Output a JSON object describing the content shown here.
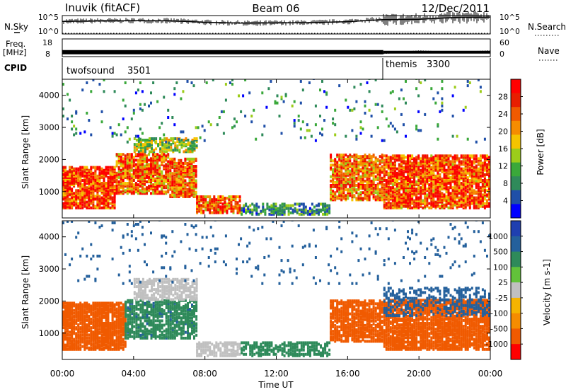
{
  "header": {
    "station": "Inuvik (fitACF)",
    "beam": "Beam 06",
    "date": "12/Dec/2011"
  },
  "noise_panel": {
    "left_label": "N.Sky",
    "right_label": "N.Search",
    "y_ticks": [
      "10^5",
      "10^0"
    ]
  },
  "freq_panel": {
    "left_label_1": "Freq.",
    "left_label_2": "[MHz]",
    "right_label": "Nave",
    "left_ticks": [
      "18",
      "8"
    ],
    "right_ticks": [
      "60",
      "0"
    ]
  },
  "cpid_panel": {
    "label": "CPID",
    "segments": [
      {
        "name": "twofsound",
        "id": "3501",
        "start_hour": 0
      },
      {
        "name": "themis",
        "id": "3300",
        "start_hour": 18
      }
    ]
  },
  "time_axis": {
    "title": "Time UT",
    "ticks": [
      "00:00",
      "04:00",
      "08:00",
      "12:00",
      "16:00",
      "20:00",
      "00:00"
    ]
  },
  "colors": {
    "power": [
      "#0000ff",
      "#1f4fa8",
      "#2f8a5a",
      "#3aa83a",
      "#9ccc1a",
      "#f5c400",
      "#f58c00",
      "#f05a00",
      "#e81e00",
      "#ff0000"
    ],
    "velocity": [
      "#ff0000",
      "#f05a00",
      "#f58c00",
      "#f5b400",
      "#c0c0c0",
      "#62c23a",
      "#2e8a5a",
      "#24609c",
      "#1f3fb0"
    ]
  },
  "chart_data": [
    {
      "type": "line",
      "title": "Noise",
      "series": [
        {
          "name": "N.Sky",
          "x": [
            0,
            2,
            4,
            6,
            8,
            10,
            12,
            14,
            16,
            18,
            20,
            22,
            24
          ],
          "values": [
            2500,
            3500,
            4000,
            3800,
            1500,
            900,
            1000,
            1200,
            2200,
            8000,
            10000,
            30000,
            40000
          ]
        },
        {
          "name": "N.Search",
          "x": [
            0,
            24
          ],
          "values": [
            1,
            1
          ]
        }
      ],
      "ylim": [
        1,
        100000
      ]
    },
    {
      "type": "line",
      "title": "Freq. / Nave",
      "series": [
        {
          "name": "Freq.",
          "x": [
            0,
            18,
            24
          ],
          "values": [
            10.5,
            10.5,
            10.5
          ]
        },
        {
          "name": "Nave",
          "x": [
            18,
            20,
            22,
            24
          ],
          "values": [
            10,
            20,
            15,
            20
          ]
        }
      ],
      "ylim": [
        8,
        18
      ],
      "y2lim": [
        0,
        60
      ]
    },
    {
      "type": "heatmap",
      "ylabel": "Slant Range [km]",
      "colorbar_label": "Power [dB]",
      "colorbar_ticks": [
        "28",
        "24",
        "20",
        "16",
        "12",
        "8",
        "4"
      ],
      "xlim": [
        0,
        24
      ],
      "ylim": [
        180,
        4500
      ],
      "yticks": [
        "4000",
        "3000",
        "2000",
        "1000"
      ],
      "regions": [
        {
          "t0": 0.0,
          "t1": 3.0,
          "r0": 450,
          "r1": 1750,
          "level": 27,
          "density": 0.8
        },
        {
          "t0": 3.0,
          "t1": 6.0,
          "r0": 900,
          "r1": 2150,
          "level": 24,
          "density": 0.7
        },
        {
          "t0": 4.0,
          "t1": 7.5,
          "r0": 2200,
          "r1": 2650,
          "level": 14,
          "density": 0.6
        },
        {
          "t0": 6.0,
          "t1": 7.5,
          "r0": 800,
          "r1": 2000,
          "level": 23,
          "density": 0.7
        },
        {
          "t0": 7.5,
          "t1": 10.0,
          "r0": 300,
          "r1": 800,
          "level": 25,
          "density": 0.75
        },
        {
          "t0": 10.0,
          "t1": 15.0,
          "r0": 250,
          "r1": 600,
          "level": 9,
          "density": 0.55
        },
        {
          "t0": 15.0,
          "t1": 18.0,
          "r0": 700,
          "r1": 2100,
          "level": 23,
          "density": 0.7
        },
        {
          "t0": 18.0,
          "t1": 24.0,
          "r0": 450,
          "r1": 2100,
          "level": 26,
          "density": 0.75
        },
        {
          "t0": 0.0,
          "t1": 24.0,
          "r0": 2500,
          "r1": 4500,
          "level": 8,
          "density": 0.03
        }
      ]
    },
    {
      "type": "heatmap",
      "ylabel": "Slant Range [km]",
      "colorbar_label": "Velocity [m s-1]",
      "colorbar_ticks": [
        "1000",
        "500",
        "100",
        "25",
        "-25",
        "-100",
        "-500",
        "-1000"
      ],
      "xlim": [
        0,
        24
      ],
      "ylim": [
        180,
        4500
      ],
      "yticks": [
        "4000",
        "3000",
        "2000",
        "1000"
      ],
      "regions": [
        {
          "t0": 0.0,
          "t1": 3.5,
          "r0": 450,
          "r1": 1900,
          "level": -300,
          "density": 0.8
        },
        {
          "t0": 3.5,
          "t1": 7.5,
          "r0": 800,
          "r1": 2000,
          "level": 80,
          "density": 0.6
        },
        {
          "t0": 4.0,
          "t1": 7.5,
          "r0": 2000,
          "r1": 2650,
          "level": 0,
          "density": 0.6
        },
        {
          "t0": 7.5,
          "t1": 10.0,
          "r0": 250,
          "r1": 700,
          "level": 0,
          "density": 0.6
        },
        {
          "t0": 10.0,
          "t1": 15.0,
          "r0": 250,
          "r1": 700,
          "level": 60,
          "density": 0.5
        },
        {
          "t0": 15.0,
          "t1": 18.0,
          "r0": 700,
          "r1": 2000,
          "level": -300,
          "density": 0.7
        },
        {
          "t0": 18.0,
          "t1": 24.0,
          "r0": 450,
          "r1": 2000,
          "level": -300,
          "density": 0.75
        },
        {
          "t0": 18.0,
          "t1": 24.0,
          "r0": 1500,
          "r1": 2400,
          "level": 150,
          "density": 0.35
        },
        {
          "t0": 0.0,
          "t1": 24.0,
          "r0": 2500,
          "r1": 4500,
          "level": 300,
          "density": 0.03
        }
      ]
    }
  ]
}
